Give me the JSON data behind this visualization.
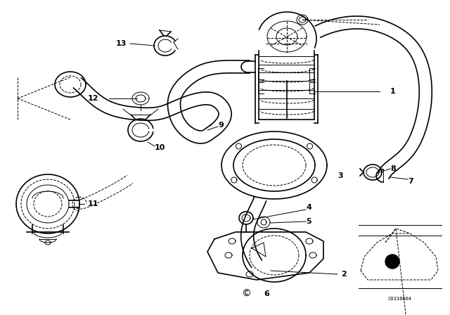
{
  "bg_color": "#ffffff",
  "line_color": "#000000",
  "fig_width": 6.4,
  "fig_height": 4.48,
  "dpi": 100,
  "code": "C0338604",
  "label_fontsize": 8,
  "label_fontweight": "bold"
}
